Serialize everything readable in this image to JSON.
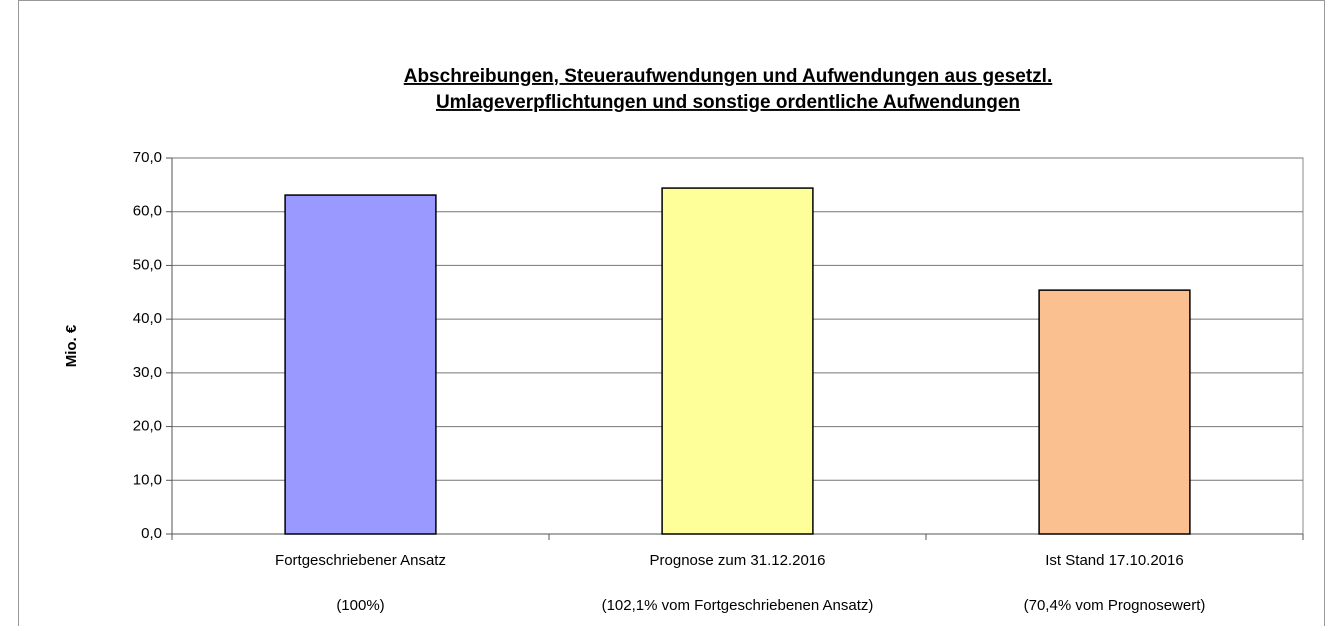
{
  "chart_data": {
    "type": "bar",
    "title": [
      "Abschreibungen, Steueraufwendungen und Aufwendungen aus gesetzl.",
      "Umlageverpflichtungen und sonstige ordentliche Aufwendungen"
    ],
    "y_label": "Mio. €",
    "categories": [
      [
        "Fortgeschriebener Ansatz",
        "(100%)"
      ],
      [
        "Prognose zum 31.12.2016",
        "(102,1% vom Fortgeschriebenen Ansatz)"
      ],
      [
        "Ist Stand 17.10.2016",
        "(70,4% vom Prognosewert)"
      ]
    ],
    "values": [
      63.1,
      64.4,
      45.4
    ],
    "colors": [
      "#9999ff",
      "#ffff99",
      "#fac090"
    ],
    "ylim": [
      0,
      70
    ],
    "yticks": [
      {
        "value": 0,
        "label": "0,0"
      },
      {
        "value": 10,
        "label": "10,0"
      },
      {
        "value": 20,
        "label": "20,0"
      },
      {
        "value": 30,
        "label": "30,0"
      },
      {
        "value": 40,
        "label": "40,0"
      },
      {
        "value": 50,
        "label": "50,0"
      },
      {
        "value": 60,
        "label": "60,0"
      },
      {
        "value": 70,
        "label": "70,0"
      }
    ],
    "grid": true
  }
}
